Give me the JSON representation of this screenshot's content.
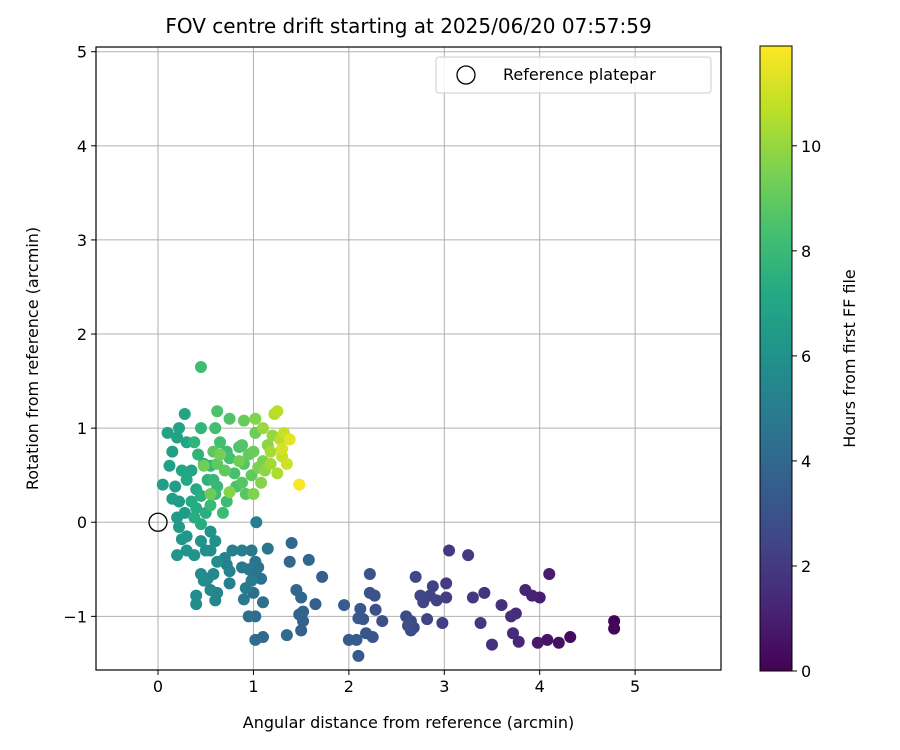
{
  "chart_data": {
    "type": "scatter",
    "title": "FOV centre drift starting at 2025/06/20 07:57:59",
    "xlabel": "Angular distance from reference (arcmin)",
    "ylabel": "Rotation from reference (arcmin)",
    "xlim": [
      -0.65,
      5.9
    ],
    "ylim": [
      -1.57,
      5.05
    ],
    "x_ticks": [
      0,
      1,
      2,
      3,
      4,
      5
    ],
    "y_ticks": [
      -1,
      0,
      1,
      2,
      3,
      4,
      5
    ],
    "grid": true,
    "legend": {
      "position": "top-right",
      "entries": [
        "Reference platepar"
      ]
    },
    "reference_point": {
      "x": 0,
      "y": 0,
      "label": "Reference platepar"
    },
    "colorbar": {
      "label": "Hours from first FF file",
      "colormap": "viridis",
      "range": [
        0,
        11.9
      ],
      "ticks": [
        0,
        2,
        4,
        6,
        8,
        10
      ]
    },
    "series": [
      {
        "color_value": "Hours from first FF file",
        "points": [
          [
            4.78,
            -1.05,
            0.1
          ],
          [
            4.78,
            -1.13,
            0.2
          ],
          [
            4.32,
            -1.22,
            0.35
          ],
          [
            4.2,
            -1.28,
            0.5
          ],
          [
            4.08,
            -1.25,
            0.65
          ],
          [
            3.98,
            -1.28,
            0.8
          ],
          [
            4.1,
            -0.55,
            0.9
          ],
          [
            4.0,
            -0.8,
            1.0
          ],
          [
            3.92,
            -0.78,
            1.1
          ],
          [
            3.85,
            -0.72,
            1.2
          ],
          [
            3.78,
            -1.27,
            1.3
          ],
          [
            3.72,
            -1.18,
            1.4
          ],
          [
            3.75,
            -0.97,
            1.5
          ],
          [
            3.7,
            -1.0,
            1.55
          ],
          [
            3.6,
            -0.88,
            1.6
          ],
          [
            3.5,
            -1.3,
            1.7
          ],
          [
            3.42,
            -0.75,
            1.8
          ],
          [
            3.38,
            -1.07,
            1.9
          ],
          [
            3.3,
            -0.8,
            1.95
          ],
          [
            3.25,
            -0.35,
            2.0
          ],
          [
            3.05,
            -0.3,
            2.05
          ],
          [
            3.02,
            -0.65,
            2.1
          ],
          [
            3.02,
            -0.8,
            2.15
          ],
          [
            2.98,
            -1.07,
            2.2
          ],
          [
            2.92,
            -0.83,
            2.25
          ],
          [
            2.88,
            -0.68,
            2.3
          ],
          [
            2.85,
            -0.78,
            2.35
          ],
          [
            2.82,
            -1.03,
            2.4
          ],
          [
            2.78,
            -0.85,
            2.45
          ],
          [
            2.75,
            -0.78,
            2.5
          ],
          [
            2.7,
            -0.58,
            2.55
          ],
          [
            2.68,
            -1.12,
            2.6
          ],
          [
            2.65,
            -1.05,
            2.65
          ],
          [
            2.65,
            -1.15,
            2.7
          ],
          [
            2.6,
            -1.0,
            2.75
          ],
          [
            2.62,
            -1.1,
            2.8
          ],
          [
            2.35,
            -1.05,
            2.85
          ],
          [
            2.28,
            -0.93,
            2.9
          ],
          [
            2.27,
            -0.78,
            2.95
          ],
          [
            2.22,
            -0.75,
            3.0
          ],
          [
            2.22,
            -0.55,
            3.05
          ],
          [
            2.25,
            -1.22,
            3.1
          ],
          [
            2.18,
            -1.18,
            3.15
          ],
          [
            2.15,
            -1.03,
            3.2
          ],
          [
            2.12,
            -0.92,
            3.25
          ],
          [
            2.1,
            -1.02,
            3.3
          ],
          [
            2.1,
            -1.42,
            3.35
          ],
          [
            2.08,
            -1.25,
            3.4
          ],
          [
            2.0,
            -1.25,
            3.45
          ],
          [
            1.95,
            -0.88,
            3.5
          ],
          [
            1.72,
            -0.58,
            3.55
          ],
          [
            1.65,
            -0.87,
            3.6
          ],
          [
            1.52,
            -1.05,
            3.65
          ],
          [
            1.5,
            -1.15,
            3.7
          ],
          [
            1.48,
            -0.98,
            3.75
          ],
          [
            1.52,
            -0.95,
            3.8
          ],
          [
            1.5,
            -0.8,
            3.85
          ],
          [
            1.45,
            -0.72,
            3.9
          ],
          [
            1.58,
            -0.4,
            3.95
          ],
          [
            1.4,
            -0.22,
            4.0
          ],
          [
            1.38,
            -0.42,
            4.05
          ],
          [
            1.35,
            -1.2,
            4.1
          ],
          [
            1.1,
            -1.22,
            4.15
          ],
          [
            1.02,
            -1.25,
            4.2
          ],
          [
            1.02,
            -1.0,
            4.25
          ],
          [
            0.95,
            -1.0,
            4.3
          ],
          [
            1.1,
            -0.85,
            4.35
          ],
          [
            1.0,
            -0.75,
            4.4
          ],
          [
            1.08,
            -0.6,
            4.45
          ],
          [
            1.0,
            -0.58,
            4.5
          ],
          [
            1.05,
            -0.48,
            4.55
          ],
          [
            1.02,
            -0.42,
            4.6
          ],
          [
            1.15,
            -0.28,
            4.65
          ],
          [
            0.98,
            -0.3,
            4.7
          ],
          [
            0.95,
            -0.5,
            4.75
          ],
          [
            0.9,
            -0.82,
            4.8
          ],
          [
            0.88,
            -0.48,
            4.85
          ],
          [
            0.92,
            -0.7,
            4.9
          ],
          [
            0.98,
            -0.62,
            4.95
          ],
          [
            1.03,
            0.0,
            5.0
          ],
          [
            0.88,
            -0.3,
            5.05
          ],
          [
            0.78,
            -0.3,
            5.1
          ],
          [
            0.75,
            -0.65,
            5.15
          ],
          [
            0.72,
            -0.45,
            5.2
          ],
          [
            0.75,
            -0.52,
            5.25
          ],
          [
            0.7,
            -0.38,
            5.3
          ],
          [
            0.62,
            -0.75,
            5.35
          ],
          [
            0.6,
            -0.83,
            5.4
          ],
          [
            0.55,
            -0.72,
            5.45
          ],
          [
            0.58,
            -0.55,
            5.5
          ],
          [
            0.52,
            -0.6,
            5.55
          ],
          [
            0.45,
            -0.55,
            5.6
          ],
          [
            0.4,
            -0.78,
            5.65
          ],
          [
            0.4,
            -0.87,
            5.7
          ],
          [
            0.48,
            -0.62,
            5.75
          ],
          [
            0.62,
            -0.42,
            5.8
          ],
          [
            0.55,
            -0.3,
            5.85
          ],
          [
            0.5,
            -0.3,
            5.9
          ],
          [
            0.6,
            -0.2,
            5.95
          ],
          [
            0.55,
            -0.1,
            6.0
          ],
          [
            0.45,
            -0.2,
            6.05
          ],
          [
            0.38,
            -0.35,
            6.1
          ],
          [
            0.3,
            -0.3,
            6.15
          ],
          [
            0.2,
            -0.35,
            6.2
          ],
          [
            0.25,
            -0.18,
            6.25
          ],
          [
            0.3,
            -0.15,
            6.3
          ],
          [
            0.22,
            -0.05,
            6.35
          ],
          [
            0.2,
            0.05,
            6.4
          ],
          [
            0.28,
            0.1,
            6.45
          ],
          [
            0.22,
            0.22,
            6.5
          ],
          [
            0.15,
            0.25,
            6.55
          ],
          [
            0.18,
            0.38,
            6.6
          ],
          [
            0.05,
            0.4,
            6.65
          ],
          [
            0.12,
            0.6,
            6.7
          ],
          [
            0.15,
            0.75,
            6.75
          ],
          [
            0.2,
            0.9,
            6.8
          ],
          [
            0.1,
            0.95,
            6.85
          ],
          [
            0.22,
            1.0,
            6.9
          ],
          [
            0.28,
            1.15,
            6.95
          ],
          [
            0.3,
            0.85,
            7.0
          ],
          [
            0.35,
            0.55,
            7.05
          ],
          [
            0.25,
            0.55,
            7.1
          ],
          [
            0.3,
            0.45,
            7.15
          ],
          [
            0.4,
            0.35,
            7.2
          ],
          [
            0.35,
            0.22,
            7.25
          ],
          [
            0.4,
            0.15,
            7.3
          ],
          [
            0.45,
            -0.02,
            7.35
          ],
          [
            0.38,
            0.05,
            7.4
          ],
          [
            0.5,
            0.1,
            7.45
          ],
          [
            0.45,
            0.28,
            7.5
          ],
          [
            0.52,
            0.45,
            7.55
          ],
          [
            0.48,
            0.62,
            7.6
          ],
          [
            0.42,
            0.72,
            7.65
          ],
          [
            0.38,
            0.85,
            7.7
          ],
          [
            0.45,
            1.0,
            7.75
          ],
          [
            0.55,
            0.6,
            7.8
          ],
          [
            0.58,
            0.45,
            7.85
          ],
          [
            0.62,
            0.38,
            7.9
          ],
          [
            0.55,
            0.18,
            7.95
          ],
          [
            0.6,
            0.3,
            8.0
          ],
          [
            0.68,
            0.1,
            8.05
          ],
          [
            0.72,
            0.22,
            8.1
          ],
          [
            0.72,
            0.75,
            8.15
          ],
          [
            0.45,
            1.65,
            8.2
          ],
          [
            0.6,
            1.0,
            8.25
          ],
          [
            0.65,
            0.85,
            8.3
          ],
          [
            0.75,
            0.68,
            8.35
          ],
          [
            0.8,
            0.52,
            8.4
          ],
          [
            0.82,
            0.38,
            8.45
          ],
          [
            0.85,
            0.8,
            8.5
          ],
          [
            0.62,
            1.18,
            8.55
          ],
          [
            0.75,
            1.1,
            8.6
          ],
          [
            0.88,
            0.82,
            8.65
          ],
          [
            0.9,
            0.62,
            8.7
          ],
          [
            0.88,
            0.42,
            8.75
          ],
          [
            0.92,
            0.3,
            8.8
          ],
          [
            0.58,
            0.75,
            8.85
          ],
          [
            0.62,
            0.62,
            8.9
          ],
          [
            0.7,
            0.55,
            8.95
          ],
          [
            0.98,
            0.5,
            9.0
          ],
          [
            0.95,
            0.72,
            9.05
          ],
          [
            0.9,
            1.08,
            9.1
          ],
          [
            1.0,
            0.75,
            9.15
          ],
          [
            1.02,
            0.95,
            9.2
          ],
          [
            0.55,
            0.3,
            9.25
          ],
          [
            0.48,
            0.6,
            9.3
          ],
          [
            0.85,
            0.65,
            9.35
          ],
          [
            0.65,
            0.72,
            9.4
          ],
          [
            1.05,
            0.58,
            9.45
          ],
          [
            1.1,
            0.65,
            9.5
          ],
          [
            1.0,
            0.3,
            9.6
          ],
          [
            1.02,
            1.1,
            9.65
          ],
          [
            1.08,
            0.42,
            9.7
          ],
          [
            0.75,
            0.32,
            9.75
          ],
          [
            1.15,
            0.82,
            9.8
          ],
          [
            1.12,
            0.55,
            9.9
          ],
          [
            1.2,
            0.92,
            10.0
          ],
          [
            1.1,
            1.0,
            10.1
          ],
          [
            1.18,
            0.62,
            10.2
          ],
          [
            1.18,
            0.75,
            10.3
          ],
          [
            1.25,
            0.52,
            10.4
          ],
          [
            1.22,
            1.15,
            10.5
          ],
          [
            1.28,
            0.88,
            10.6
          ],
          [
            1.25,
            1.18,
            10.7
          ],
          [
            1.3,
            0.7,
            10.8
          ],
          [
            1.32,
            0.95,
            10.9
          ],
          [
            1.35,
            0.62,
            11.0
          ],
          [
            1.3,
            0.78,
            11.2
          ],
          [
            1.38,
            0.88,
            11.4
          ],
          [
            1.48,
            0.4,
            11.8
          ]
        ]
      }
    ]
  }
}
